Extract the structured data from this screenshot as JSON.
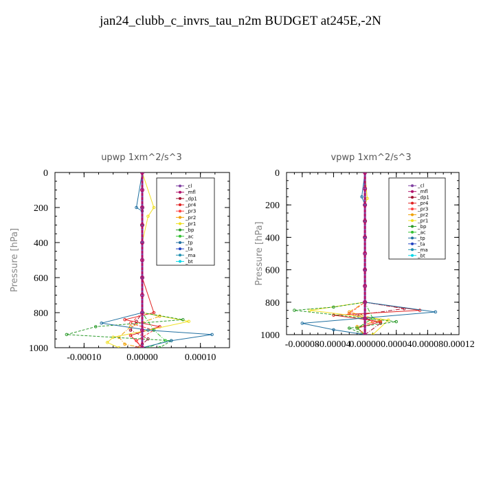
{
  "title": "jan24_clubb_c_invrs_tau_n2m  BUDGET at245E,-2N",
  "chart_data": [
    {
      "type": "line",
      "title": "upwp   1xm^2/s^3",
      "ylabel": "Pressure [hPa]",
      "xlim": [
        -0.00015,
        0.00015
      ],
      "ylim": [
        1000,
        0
      ],
      "yticks": [
        0,
        200,
        400,
        600,
        800,
        1000
      ],
      "xticks": [
        -0.0001,
        0,
        0.0001
      ],
      "xtick_labels": [
        "-0.00010",
        "0.00000",
        "0.00010"
      ],
      "legend": [
        "_cl",
        "_mfl",
        "_dp1",
        "_pr4",
        "_pr3",
        "_pr2",
        "_pr1",
        "_bp",
        "_ac",
        "_tp",
        "_ta",
        "_ma",
        "_bt"
      ],
      "legend_placement": "top-right",
      "series": [
        {
          "name": "_cl",
          "color": "#7f3fa0",
          "x": [
            0,
            0,
            0,
            0,
            0,
            0,
            0,
            0,
            0,
            0,
            0
          ],
          "y": [
            0,
            100,
            200,
            300,
            400,
            500,
            600,
            700,
            800,
            900,
            1000
          ]
        },
        {
          "name": "_mfl",
          "color": "#b0106a",
          "x": [
            0,
            0,
            0,
            0,
            0,
            0,
            0,
            0,
            0,
            0,
            0
          ],
          "y": [
            0,
            100,
            200,
            300,
            400,
            500,
            600,
            700,
            800,
            900,
            1000
          ]
        },
        {
          "name": "_dp1",
          "color": "#a01030",
          "x": [
            0,
            0,
            0,
            0,
            0,
            -1e-05,
            -2e-05,
            1e-05,
            0,
            -1e-05
          ],
          "y": [
            0,
            200,
            400,
            600,
            800,
            850,
            900,
            950,
            980,
            1000
          ]
        },
        {
          "name": "_pr4",
          "color": "#e02020",
          "x": [
            0,
            0,
            0,
            0,
            2e-05,
            -3e-05,
            3e-05,
            -2e-05,
            0
          ],
          "y": [
            0,
            200,
            400,
            600,
            800,
            840,
            880,
            930,
            1000
          ]
        },
        {
          "name": "_pr3",
          "color": "#ff4040",
          "x": [
            0,
            0,
            0,
            0,
            -2e-05,
            2e-05,
            -1e-05,
            0
          ],
          "y": [
            0,
            300,
            600,
            800,
            860,
            900,
            960,
            1000
          ]
        },
        {
          "name": "_pr2",
          "color": "#f0a000",
          "x": [
            0,
            0,
            0,
            0,
            0,
            3e-05,
            -2e-05,
            -4e-05,
            -3e-05,
            0
          ],
          "y": [
            0,
            200,
            400,
            600,
            800,
            820,
            880,
            940,
            980,
            1000
          ]
        },
        {
          "name": "_pr1",
          "color": "#f0e020",
          "x": [
            0,
            2e-05,
            1e-05,
            0,
            0,
            8e-05,
            1e-05,
            -5e-05,
            -6e-05,
            -4e-05
          ],
          "y": [
            0,
            200,
            250,
            400,
            800,
            850,
            900,
            940,
            970,
            1000
          ]
        },
        {
          "name": "_bp",
          "color": "#2a9a2a",
          "x": [
            0,
            0,
            0,
            0,
            7e-05,
            -8e-05,
            -0.00013,
            5e-05,
            3e-05
          ],
          "y": [
            0,
            300,
            600,
            800,
            840,
            880,
            925,
            960,
            1000
          ]
        },
        {
          "name": "_ac",
          "color": "#30c030",
          "x": [
            0,
            0,
            0,
            0,
            2e-05,
            4e-05,
            1e-05
          ],
          "y": [
            0,
            300,
            600,
            800,
            900,
            960,
            1000
          ]
        },
        {
          "name": "_tp",
          "color": "#1f6fa0",
          "x": [
            0,
            -1e-05,
            0,
            0,
            0,
            -7e-05,
            1e-05,
            0.00012,
            5e-05,
            0
          ],
          "y": [
            0,
            200,
            220,
            400,
            800,
            860,
            900,
            925,
            960,
            1000
          ]
        },
        {
          "name": "_ta",
          "color": "#2040c0",
          "x": [
            0,
            0,
            0,
            0,
            0,
            0
          ],
          "y": [
            0,
            200,
            400,
            600,
            800,
            1000
          ]
        },
        {
          "name": "_ma",
          "color": "#2090b0",
          "x": [
            0,
            0,
            0,
            0,
            0,
            0
          ],
          "y": [
            0,
            200,
            400,
            600,
            800,
            1000
          ]
        },
        {
          "name": "_bt",
          "color": "#00d8e8",
          "x": [
            0,
            0,
            0,
            0,
            0,
            0
          ],
          "y": [
            0,
            200,
            400,
            600,
            800,
            1000
          ]
        }
      ]
    },
    {
      "type": "line",
      "title": "vpwp   1xm^2/s^3",
      "ylabel": "Pressure [hPa]",
      "xlim": [
        -0.0001,
        0.00012
      ],
      "ylim": [
        1000,
        0
      ],
      "yticks": [
        0,
        200,
        400,
        600,
        800,
        1000
      ],
      "xticks": [
        -8e-05,
        -4e-05,
        0,
        4e-05,
        8e-05,
        0.00012
      ],
      "xtick_labels": [
        "-0.00008",
        "-0.00004",
        "0.00000",
        "0.00004",
        "0.00008",
        "0.00012"
      ],
      "legend": [
        "_cl",
        "_mfl",
        "_dp1",
        "_pr4",
        "_pr3",
        "_pr2",
        "_pr1",
        "_bp",
        "_ac",
        "_tp",
        "_ta",
        "_ma",
        "_bt"
      ],
      "legend_placement": "top-right",
      "series": [
        {
          "name": "_cl",
          "color": "#7f3fa0",
          "x": [
            0,
            0,
            0,
            0,
            0,
            0,
            0,
            0,
            0,
            0,
            0
          ],
          "y": [
            0,
            100,
            200,
            300,
            400,
            500,
            600,
            700,
            800,
            900,
            1000
          ]
        },
        {
          "name": "_mfl",
          "color": "#b0106a",
          "x": [
            0,
            0,
            0,
            0,
            0,
            0,
            0,
            0,
            0,
            0,
            0
          ],
          "y": [
            0,
            100,
            200,
            300,
            400,
            500,
            600,
            700,
            800,
            900,
            1000
          ]
        },
        {
          "name": "_dp1",
          "color": "#a01030",
          "x": [
            0,
            0,
            0,
            0,
            5e-05,
            -1e-05,
            2e-05,
            0
          ],
          "y": [
            0,
            300,
            600,
            800,
            840,
            880,
            930,
            1000
          ]
        },
        {
          "name": "_pr4",
          "color": "#e02020",
          "x": [
            0,
            0,
            0,
            0,
            7e-05,
            -4e-05,
            2e-05,
            -1e-05,
            0
          ],
          "y": [
            0,
            300,
            600,
            800,
            850,
            880,
            920,
            960,
            1000
          ]
        },
        {
          "name": "_pr3",
          "color": "#ff4040",
          "x": [
            0,
            0,
            0,
            0,
            -2e-05,
            1e-05,
            -1e-05,
            0
          ],
          "y": [
            0,
            300,
            600,
            800,
            870,
            920,
            960,
            1000
          ]
        },
        {
          "name": "_pr2",
          "color": "#f0a000",
          "x": [
            0,
            0,
            0,
            0,
            -2e-05,
            2e-05,
            -1e-05,
            0
          ],
          "y": [
            0,
            300,
            600,
            800,
            860,
            910,
            950,
            1000
          ]
        },
        {
          "name": "_pr1",
          "color": "#f0e020",
          "x": [
            0,
            3e-06,
            0,
            0,
            0,
            -7e-05,
            3e-05,
            1e-05
          ],
          "y": [
            0,
            160,
            200,
            400,
            800,
            850,
            910,
            1000
          ]
        },
        {
          "name": "_bp",
          "color": "#2a9a2a",
          "x": [
            0,
            0,
            0,
            0,
            -4e-05,
            -9e-05,
            4e-05,
            -2e-05,
            0
          ],
          "y": [
            0,
            300,
            600,
            800,
            830,
            850,
            920,
            960,
            1000
          ]
        },
        {
          "name": "_ac",
          "color": "#30c030",
          "x": [
            0,
            0,
            0,
            0,
            1e-05,
            -1e-05,
            0
          ],
          "y": [
            0,
            300,
            600,
            800,
            900,
            960,
            1000
          ]
        },
        {
          "name": "_tp",
          "color": "#1f6fa0",
          "x": [
            0,
            -4e-06,
            0,
            0,
            0,
            9e-05,
            -8e-05,
            -4e-05,
            0
          ],
          "y": [
            0,
            150,
            200,
            400,
            800,
            860,
            930,
            970,
            1000
          ]
        },
        {
          "name": "_ta",
          "color": "#2040c0",
          "x": [
            0,
            0,
            0,
            0,
            0,
            0
          ],
          "y": [
            0,
            200,
            400,
            600,
            800,
            1000
          ]
        },
        {
          "name": "_ma",
          "color": "#2090b0",
          "x": [
            0,
            0,
            0,
            0,
            0,
            0
          ],
          "y": [
            0,
            200,
            400,
            600,
            800,
            1000
          ]
        },
        {
          "name": "_bt",
          "color": "#00d8e8",
          "x": [
            0,
            0,
            0,
            0,
            0,
            0
          ],
          "y": [
            0,
            200,
            400,
            600,
            800,
            1000
          ]
        }
      ]
    }
  ]
}
